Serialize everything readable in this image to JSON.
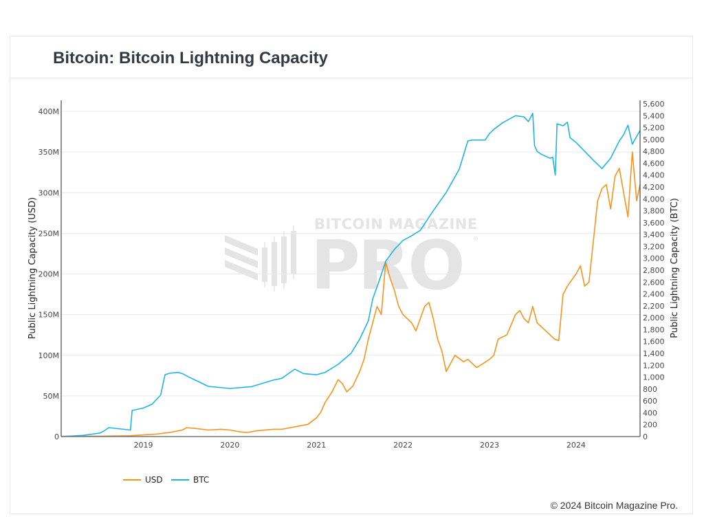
{
  "card": {
    "title": "Bitcoin: Bitcoin Lightning Capacity"
  },
  "footer": {
    "copyright": "© 2024 Bitcoin Magazine Pro."
  },
  "watermark": {
    "line1": "BITCOIN MAGAZINE",
    "line2": "PRO",
    "mark": "®"
  },
  "colors": {
    "usd": "#f7931a",
    "btc": "#1fb3e5",
    "grid": "#e9e9e9",
    "axis": "#222222",
    "watermark": "#e4e4e4"
  },
  "chart_data": {
    "type": "line",
    "title": "Bitcoin: Bitcoin Lightning Capacity",
    "xlabel": "",
    "ylabel": "Public Lightning Capacity (USD)",
    "y2label": "Public Lightning Capacity (BTC)",
    "xlim": [
      2018.05,
      2024.74
    ],
    "ylim": [
      0,
      410
    ],
    "y2lim": [
      0,
      5740
    ],
    "grid": true,
    "legend_position": "bottom-left",
    "x_ticks": [
      {
        "value": 2019,
        "label": "2019"
      },
      {
        "value": 2020,
        "label": "2020"
      },
      {
        "value": 2021,
        "label": "2021"
      },
      {
        "value": 2022,
        "label": "2022"
      },
      {
        "value": 2023,
        "label": "2023"
      },
      {
        "value": 2024,
        "label": "2024"
      }
    ],
    "y_ticks": [
      {
        "value": 0,
        "label": "0"
      },
      {
        "value": 50,
        "label": "50M"
      },
      {
        "value": 100,
        "label": "100M"
      },
      {
        "value": 150,
        "label": "150M"
      },
      {
        "value": 200,
        "label": "200M"
      },
      {
        "value": 250,
        "label": "250M"
      },
      {
        "value": 300,
        "label": "300M"
      },
      {
        "value": 350,
        "label": "350M"
      },
      {
        "value": 400,
        "label": "400M"
      }
    ],
    "y2_ticks": [
      {
        "value": 0,
        "label": "0"
      },
      {
        "value": 200,
        "label": "200"
      },
      {
        "value": 400,
        "label": "400"
      },
      {
        "value": 600,
        "label": "600"
      },
      {
        "value": 800,
        "label": "800"
      },
      {
        "value": 1000,
        "label": "1,000"
      },
      {
        "value": 1200,
        "label": "1,200"
      },
      {
        "value": 1400,
        "label": "1,400"
      },
      {
        "value": 1600,
        "label": "1,600"
      },
      {
        "value": 1800,
        "label": "1,800"
      },
      {
        "value": 2000,
        "label": "2,000"
      },
      {
        "value": 2200,
        "label": "2,200"
      },
      {
        "value": 2400,
        "label": "2,400"
      },
      {
        "value": 2600,
        "label": "2,600"
      },
      {
        "value": 2800,
        "label": "2,800"
      },
      {
        "value": 3000,
        "label": "3,000"
      },
      {
        "value": 3200,
        "label": "3,200"
      },
      {
        "value": 3400,
        "label": "3,400"
      },
      {
        "value": 3600,
        "label": "3,600"
      },
      {
        "value": 3800,
        "label": "3,800"
      },
      {
        "value": 4000,
        "label": "4,000"
      },
      {
        "value": 4200,
        "label": "4,200"
      },
      {
        "value": 4400,
        "label": "4,400"
      },
      {
        "value": 4600,
        "label": "4,600"
      },
      {
        "value": 4800,
        "label": "4,800"
      },
      {
        "value": 5000,
        "label": "5,000"
      },
      {
        "value": 5200,
        "label": "5,200"
      },
      {
        "value": 5400,
        "label": "5,400"
      },
      {
        "value": 5600,
        "label": "5,600"
      }
    ],
    "series": [
      {
        "name": "USD",
        "axis": "y",
        "unit": "USD millions",
        "x": [
          2018.05,
          2018.5,
          2018.85,
          2019.0,
          2019.15,
          2019.3,
          2019.45,
          2019.5,
          2019.6,
          2019.75,
          2019.9,
          2020.0,
          2020.1,
          2020.2,
          2020.3,
          2020.5,
          2020.6,
          2020.75,
          2020.9,
          2021.0,
          2021.05,
          2021.1,
          2021.18,
          2021.25,
          2021.3,
          2021.35,
          2021.42,
          2021.5,
          2021.55,
          2021.6,
          2021.65,
          2021.7,
          2021.75,
          2021.8,
          2021.85,
          2021.9,
          2021.95,
          2022.0,
          2022.1,
          2022.15,
          2022.25,
          2022.3,
          2022.35,
          2022.4,
          2022.45,
          2022.5,
          2022.55,
          2022.6,
          2022.7,
          2022.75,
          2022.85,
          2022.9,
          2023.0,
          2023.05,
          2023.1,
          2023.2,
          2023.3,
          2023.35,
          2023.4,
          2023.45,
          2023.5,
          2023.55,
          2023.65,
          2023.75,
          2023.8,
          2023.85,
          2023.9,
          2024.0,
          2024.05,
          2024.1,
          2024.15,
          2024.2,
          2024.25,
          2024.3,
          2024.35,
          2024.4,
          2024.45,
          2024.5,
          2024.55,
          2024.6,
          2024.65,
          2024.7,
          2024.74
        ],
        "values": [
          0.3,
          0.5,
          1,
          2,
          3,
          5,
          8,
          11,
          10,
          8,
          9,
          8,
          6,
          5,
          7,
          9,
          9,
          12,
          15,
          23,
          30,
          42,
          55,
          70,
          65,
          55,
          62,
          80,
          95,
          120,
          140,
          160,
          150,
          215,
          195,
          180,
          160,
          150,
          140,
          130,
          160,
          165,
          145,
          120,
          105,
          80,
          90,
          100,
          92,
          95,
          85,
          88,
          95,
          100,
          120,
          125,
          150,
          155,
          145,
          140,
          160,
          140,
          130,
          120,
          118,
          175,
          185,
          200,
          210,
          185,
          190,
          240,
          290,
          305,
          310,
          280,
          320,
          330,
          300,
          270,
          350,
          290,
          310
        ]
      },
      {
        "name": "BTC",
        "axis": "y2",
        "unit": "BTC",
        "x": [
          2018.05,
          2018.3,
          2018.5,
          2018.55,
          2018.6,
          2018.85,
          2018.87,
          2019.0,
          2019.1,
          2019.2,
          2019.25,
          2019.3,
          2019.4,
          2019.45,
          2019.55,
          2019.75,
          2020.0,
          2020.25,
          2020.5,
          2020.6,
          2020.75,
          2020.85,
          2021.0,
          2021.1,
          2021.25,
          2021.4,
          2021.5,
          2021.6,
          2021.65,
          2021.72,
          2021.8,
          2021.9,
          2022.0,
          2022.1,
          2022.2,
          2022.35,
          2022.5,
          2022.65,
          2022.75,
          2022.8,
          2022.95,
          2023.0,
          2023.05,
          2023.15,
          2023.3,
          2023.4,
          2023.45,
          2023.5,
          2023.52,
          2023.55,
          2023.6,
          2023.7,
          2023.73,
          2023.76,
          2023.78,
          2023.85,
          2023.9,
          2023.93,
          2024.0,
          2024.1,
          2024.2,
          2024.3,
          2024.4,
          2024.5,
          2024.55,
          2024.6,
          2024.65,
          2024.7,
          2024.74
        ],
        "values": [
          0,
          20,
          60,
          100,
          150,
          110,
          440,
          480,
          545,
          700,
          1040,
          1065,
          1080,
          1060,
          985,
          845,
          810,
          840,
          950,
          980,
          1135,
          1060,
          1040,
          1080,
          1215,
          1400,
          1640,
          1950,
          2315,
          2600,
          2950,
          3150,
          3300,
          3380,
          3470,
          3800,
          4110,
          4500,
          4975,
          4990,
          4990,
          5100,
          5170,
          5280,
          5400,
          5380,
          5300,
          5440,
          4895,
          4800,
          4750,
          4685,
          4700,
          4400,
          5265,
          5230,
          5290,
          5030,
          4950,
          4800,
          4650,
          4510,
          4685,
          4975,
          5080,
          5240,
          4920,
          5050,
          5150
        ]
      }
    ]
  }
}
